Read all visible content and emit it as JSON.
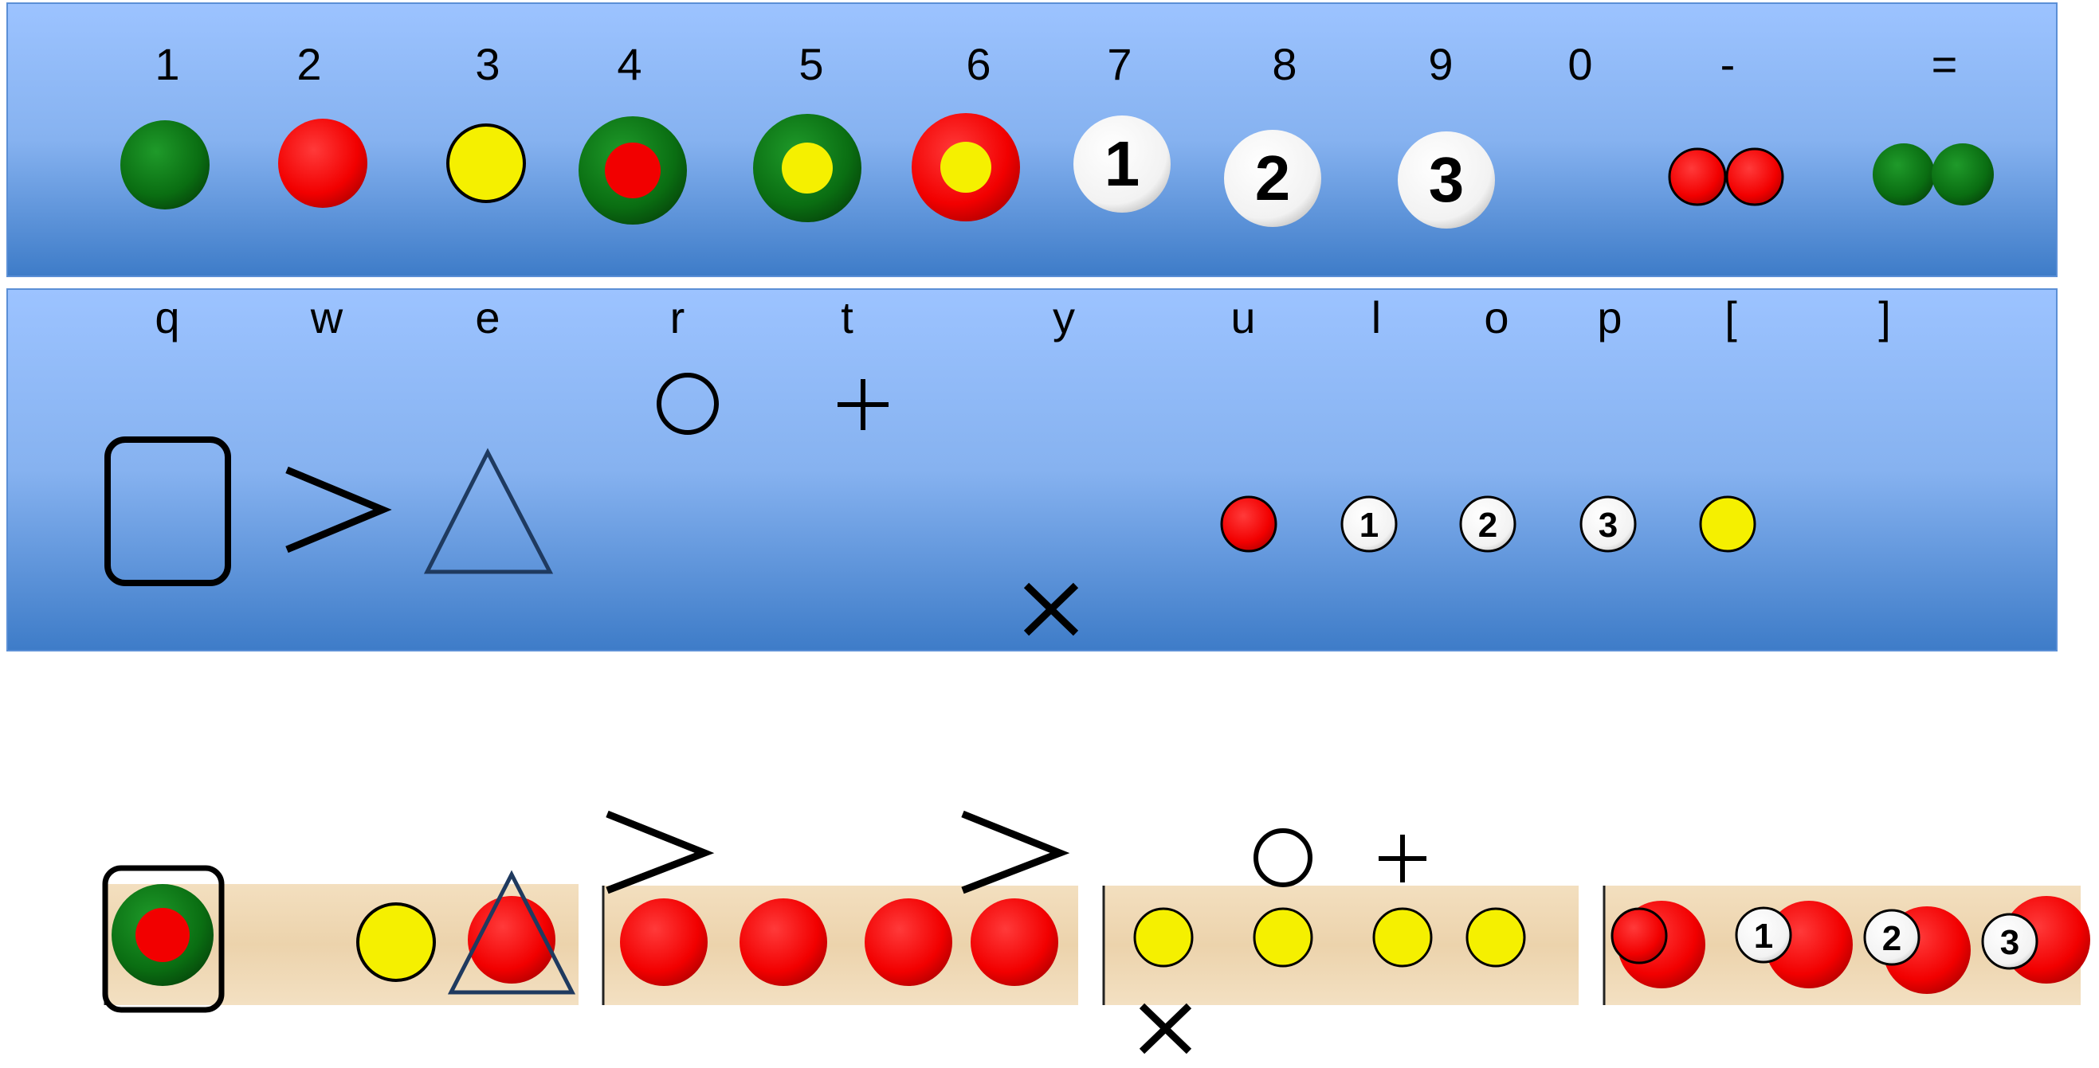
{
  "colors": {
    "green": "#0a6e12",
    "red": "#f20000",
    "yellow": "#f5f000",
    "white": "#ffffff",
    "navy": "#1f3a5f",
    "wood": "#f0d9b5"
  },
  "top_row": {
    "keys": [
      "1",
      "2",
      "3",
      "4",
      "5",
      "6",
      "7",
      "8",
      "9",
      "0",
      "-",
      "="
    ],
    "symbols": [
      "green-piece",
      "red-piece",
      "yellow-piece",
      "green-ring-red-center",
      "green-ring-yellow-center",
      "red-ring-yellow-center",
      "white-numbered-piece",
      "white-numbered-piece",
      "white-numbered-piece",
      "",
      "two-red-pieces",
      "two-green-pieces"
    ],
    "numbered_labels": [
      "1",
      "2",
      "3"
    ]
  },
  "mid_row": {
    "keys": [
      "q",
      "w",
      "e",
      "r",
      "t",
      "y",
      "u",
      "l",
      "o",
      "p",
      "[",
      "]"
    ],
    "symbols": [
      "rounded-square-outline",
      "greater-than-chevron",
      "triangle-outline",
      "circle-outline",
      "plus-sign",
      "x-mark",
      "small-red-piece",
      "small-white-numbered-piece",
      "small-white-numbered-piece",
      "small-white-numbered-piece",
      "small-yellow-piece",
      ""
    ],
    "numbered_labels": [
      "1",
      "2",
      "3"
    ]
  },
  "example_boards": [
    {
      "name": "board-1",
      "contents": [
        "green-ring-red-center in rounded square",
        "yellow-piece",
        "red-piece with triangle"
      ]
    },
    {
      "name": "board-2",
      "contents": [
        "chevron",
        "chevron",
        "red-piece",
        "red-piece",
        "red-piece",
        "red-piece"
      ]
    },
    {
      "name": "board-3",
      "contents": [
        "circle-outline",
        "plus-sign",
        "x-mark",
        "yellow-piece",
        "yellow-piece",
        "yellow-piece",
        "yellow-piece"
      ]
    },
    {
      "name": "board-4",
      "contents": [
        "red-piece",
        "red-piece",
        "red-piece",
        "red-piece"
      ],
      "numbered_labels": [
        "1",
        "2",
        "3"
      ]
    }
  ]
}
